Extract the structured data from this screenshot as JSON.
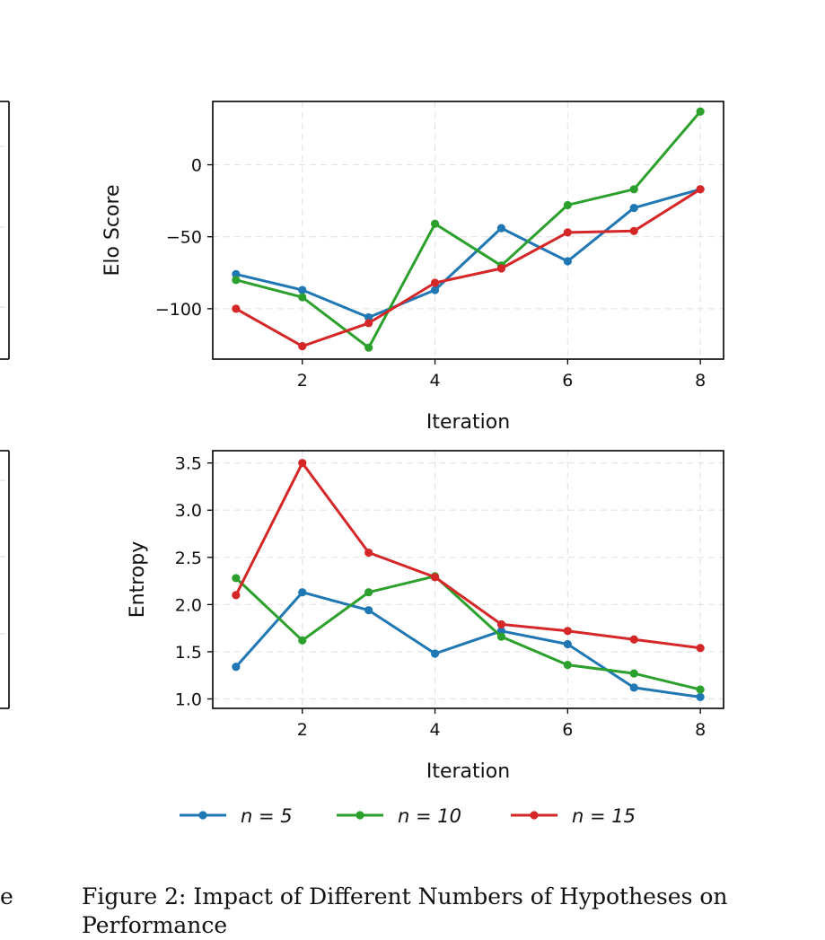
{
  "chart_data": [
    {
      "type": "line",
      "ylabel": "Elo Score",
      "xlabel": "Iteration",
      "x": [
        1,
        2,
        3,
        4,
        5,
        6,
        7,
        8
      ],
      "xlim": [
        0.65,
        8.35
      ],
      "ylim": [
        -135,
        44
      ],
      "xticks": [
        2,
        4,
        6,
        8
      ],
      "yticks": [
        0,
        -50,
        -100
      ],
      "ytick_labels": [
        "0",
        "−50",
        "−100"
      ],
      "grid": true,
      "series": [
        {
          "name": "n = 5",
          "color": "#1f77b4",
          "values": [
            -76,
            -87,
            -106,
            -87,
            -44,
            -67,
            -30,
            -17
          ]
        },
        {
          "name": "n = 10",
          "color": "#2ca02c",
          "values": [
            -80,
            -92,
            -127,
            -41,
            -70,
            -28,
            -17,
            37
          ]
        },
        {
          "name": "n = 15",
          "color": "#d62728",
          "values": [
            -100,
            -126,
            -110,
            -82,
            -72,
            -47,
            -46,
            -17
          ]
        }
      ]
    },
    {
      "type": "line",
      "ylabel": "Entropy",
      "xlabel": "Iteration",
      "x": [
        1,
        2,
        3,
        4,
        5,
        6,
        7,
        8
      ],
      "xlim": [
        0.65,
        8.35
      ],
      "ylim": [
        0.9,
        3.63
      ],
      "xticks": [
        2,
        4,
        6,
        8
      ],
      "yticks": [
        1.0,
        1.5,
        2.0,
        2.5,
        3.0,
        3.5
      ],
      "ytick_labels": [
        "1.0",
        "1.5",
        "2.0",
        "2.5",
        "3.0",
        "3.5"
      ],
      "grid": true,
      "series": [
        {
          "name": "n = 5",
          "color": "#1f77b4",
          "values": [
            1.34,
            2.13,
            1.94,
            1.48,
            1.72,
            1.58,
            1.12,
            1.02
          ]
        },
        {
          "name": "n = 10",
          "color": "#2ca02c",
          "values": [
            2.28,
            1.62,
            2.13,
            2.3,
            1.66,
            1.36,
            1.27,
            1.1
          ]
        },
        {
          "name": "n = 15",
          "color": "#d62728",
          "values": [
            2.1,
            3.5,
            2.55,
            2.29,
            1.79,
            1.72,
            1.63,
            1.54
          ]
        }
      ]
    }
  ],
  "legend": {
    "placement": "bottom-center",
    "items": [
      {
        "label": "n = 5",
        "color": "#1f77b4"
      },
      {
        "label": "n = 10",
        "color": "#2ca02c"
      },
      {
        "label": "n = 15",
        "color": "#d62728"
      }
    ]
  },
  "caption": {
    "text": "Figure 2: Impact of Different Numbers of Hypotheses on Performance",
    "left_fragment": "e"
  }
}
